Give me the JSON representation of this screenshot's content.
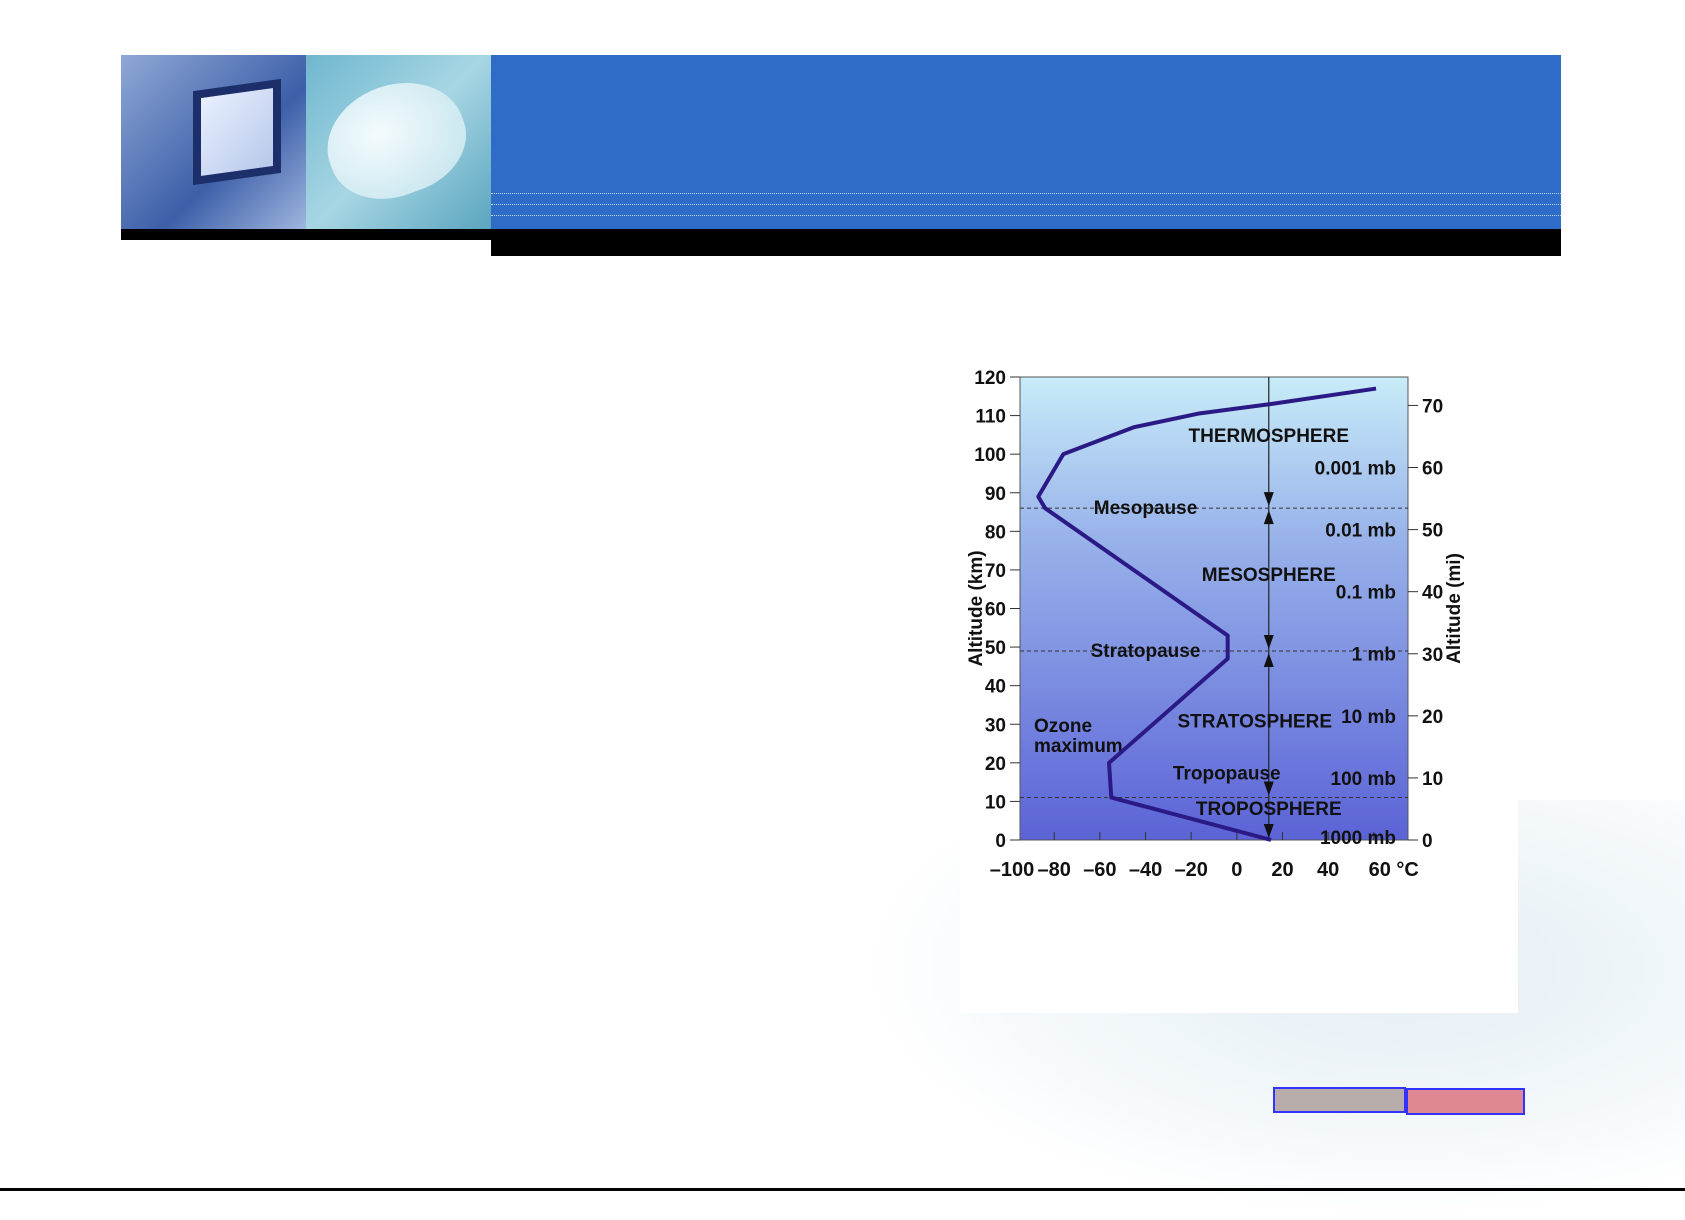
{
  "chart_data": {
    "type": "line",
    "xlabel": "°C",
    "ylabel": "Altitude (km)",
    "y2label": "Altitude (mi)",
    "xlim": [
      -95,
      75
    ],
    "ylim": [
      0,
      120
    ],
    "x_ticks": [
      -100,
      -80,
      -60,
      -40,
      -20,
      0,
      20,
      40,
      60
    ],
    "x_tick_labels": [
      "–100",
      "–80",
      "–60",
      "–40",
      "–20",
      "0",
      "20",
      "40",
      "60 °C"
    ],
    "y_ticks": [
      0,
      10,
      20,
      30,
      40,
      50,
      60,
      70,
      80,
      90,
      100,
      110,
      120
    ],
    "y2_ticks_mi": [
      0,
      10,
      20,
      30,
      40,
      50,
      60,
      70
    ],
    "series": [
      {
        "x": [
          15,
          -55,
          -56,
          -4,
          -4,
          -84,
          -87,
          -76,
          -45,
          -17,
          15,
          61
        ],
        "y": [
          0,
          11,
          20,
          47,
          53,
          86,
          89,
          100,
          107,
          110.5,
          113,
          117
        ]
      }
    ],
    "boundaries": [
      {
        "label": "Mesopause",
        "altitude_km": 86
      },
      {
        "label": "Stratopause",
        "altitude_km": 49
      },
      {
        "label": "Tropopause",
        "altitude_km": 11
      }
    ],
    "layers": [
      {
        "label": "THERMOSPHERE",
        "altitude_km": 105
      },
      {
        "label": "MESOSPHERE",
        "altitude_km": 69
      },
      {
        "label": "STRATOSPHERE",
        "altitude_km": 31
      },
      {
        "label": "TROPOSPHERE",
        "altitude_km": 7
      }
    ],
    "pressure_levels": [
      {
        "label": "0.001 mb",
        "altitude_km": 96.5
      },
      {
        "label": "0.01 mb",
        "altitude_km": 80.5
      },
      {
        "label": "0.1 mb",
        "altitude_km": 64.4
      },
      {
        "label": "1 mb",
        "altitude_km": 48.3
      },
      {
        "label": "10 mb",
        "altitude_km": 32.2
      },
      {
        "label": "100 mb",
        "altitude_km": 16.1
      },
      {
        "label": "1000 mb",
        "altitude_km": 1.5
      }
    ],
    "annotations": [
      {
        "label": "Ozone maximum",
        "lines": [
          "Ozone",
          "maximum"
        ],
        "altitude_km": 27
      }
    ],
    "grid": false,
    "colors": {
      "line": "#2b1a86",
      "plot_top": "#c8ecf8",
      "plot_bottom": "#5b63d6"
    }
  },
  "footer": {
    "box_colors": [
      "#b8acab",
      "#df8793"
    ],
    "border_color": "#3333ff"
  }
}
